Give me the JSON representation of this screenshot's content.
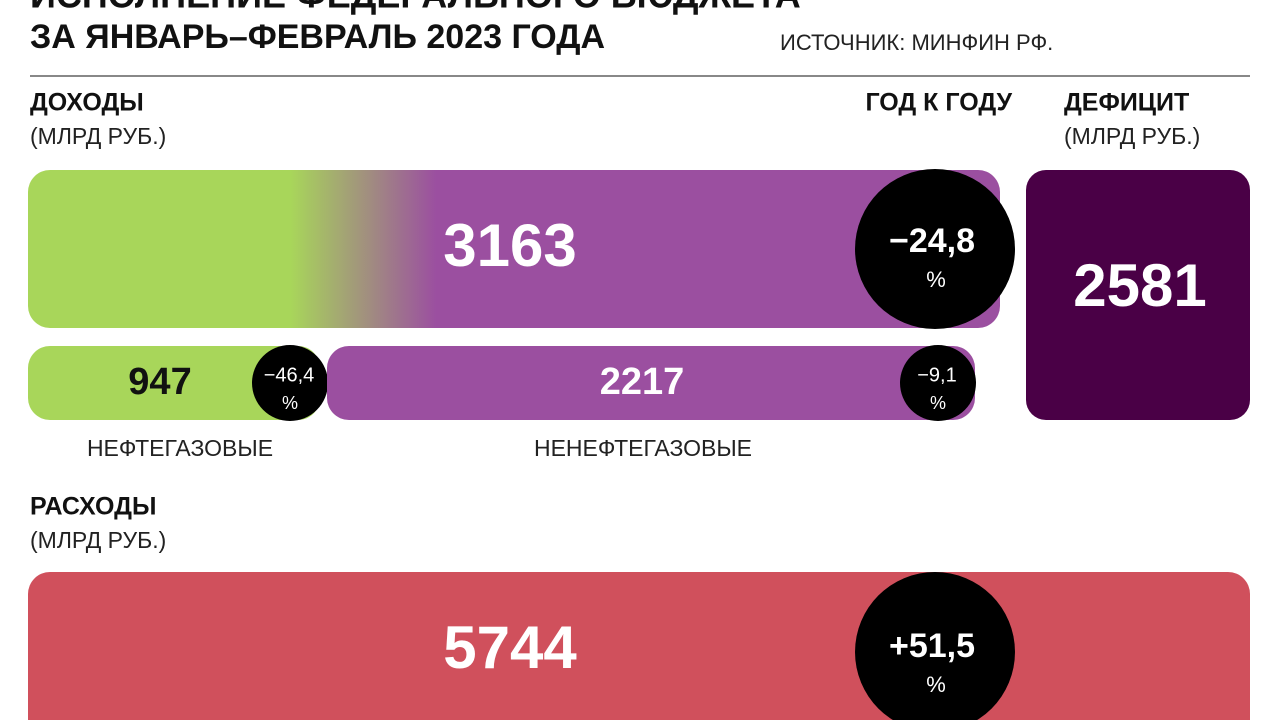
{
  "header": {
    "title_line1": "ИСПОЛНЕНИЕ ФЕДЕРАЛЬНОГО БЮДЖЕТА",
    "title_line2": "ЗА ЯНВАРЬ–ФЕВРАЛЬ 2023 ГОДА",
    "source": "ИСТОЧНИК:  МИНФИН РФ."
  },
  "revenue": {
    "label": "ДОХОДЫ",
    "unit": "(МЛРД РУБ.)",
    "yoy_label": "ГОД К ГОДУ",
    "total": {
      "value": "3163",
      "change": "−24,8",
      "change_unit": "%"
    },
    "oil_gas": {
      "value": "947",
      "change": "−46,4",
      "change_unit": "%",
      "label": "НЕФТЕГАЗОВЫЕ"
    },
    "non_oil_gas": {
      "value": "2217",
      "change": "−9,1",
      "change_unit": "%",
      "label": "НЕНЕФТЕГАЗОВЫЕ"
    }
  },
  "deficit": {
    "label": "ДЕФИЦИТ",
    "unit": "(МЛРД РУБ.)",
    "value": "2581"
  },
  "expenses": {
    "label": "РАСХОДЫ",
    "unit": "(МЛРД РУБ.)",
    "value": "5744",
    "change": "+51,5",
    "change_unit": "%"
  }
}
